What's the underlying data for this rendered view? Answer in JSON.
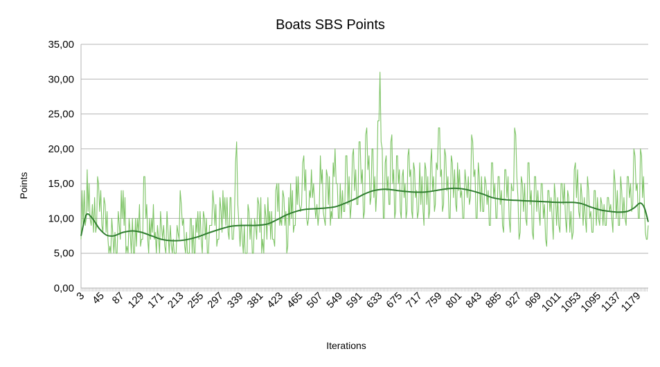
{
  "chart_data": {
    "type": "line",
    "title": "Boats SBS Points",
    "xlabel": "Iterations",
    "ylabel": "Points",
    "ylim": [
      0,
      35
    ],
    "y_ticks": [
      "0,00",
      "5,00",
      "10,00",
      "15,00",
      "20,00",
      "25,00",
      "30,00",
      "35,00"
    ],
    "x_ticks": [
      "3",
      "45",
      "87",
      "129",
      "171",
      "213",
      "255",
      "297",
      "339",
      "381",
      "423",
      "465",
      "507",
      "549",
      "591",
      "633",
      "675",
      "717",
      "759",
      "801",
      "843",
      "885",
      "927",
      "969",
      "1011",
      "1053",
      "1095",
      "1137",
      "1179"
    ],
    "x_range": [
      1,
      1200
    ],
    "grid": "horizontal",
    "legend": "none",
    "series": [
      {
        "kind": "raw",
        "color": "#7cc364",
        "anchors": [
          [
            1,
            7
          ],
          [
            3,
            14
          ],
          [
            10,
            9
          ],
          [
            14,
            17
          ],
          [
            20,
            10
          ],
          [
            25,
            12
          ],
          [
            32,
            8
          ],
          [
            38,
            15
          ],
          [
            45,
            9
          ],
          [
            52,
            12
          ],
          [
            58,
            7
          ],
          [
            62,
            6
          ],
          [
            68,
            8
          ],
          [
            75,
            5
          ],
          [
            82,
            9
          ],
          [
            90,
            14
          ],
          [
            98,
            6
          ],
          [
            105,
            8
          ],
          [
            112,
            5
          ],
          [
            120,
            10
          ],
          [
            129,
            7
          ],
          [
            136,
            16
          ],
          [
            142,
            7
          ],
          [
            150,
            10
          ],
          [
            158,
            8
          ],
          [
            165,
            7
          ],
          [
            171,
            9
          ],
          [
            178,
            6
          ],
          [
            185,
            8
          ],
          [
            192,
            6
          ],
          [
            200,
            5
          ],
          [
            206,
            8
          ],
          [
            213,
            12
          ],
          [
            220,
            6
          ],
          [
            228,
            5
          ],
          [
            234,
            10
          ],
          [
            240,
            5
          ],
          [
            248,
            11
          ],
          [
            255,
            7
          ],
          [
            262,
            10
          ],
          [
            268,
            5
          ],
          [
            275,
            9
          ],
          [
            282,
            12
          ],
          [
            290,
            7
          ],
          [
            297,
            11
          ],
          [
            305,
            13
          ],
          [
            312,
            8
          ],
          [
            318,
            13
          ],
          [
            323,
            7
          ],
          [
            330,
            21
          ],
          [
            335,
            9
          ],
          [
            342,
            7
          ],
          [
            350,
            5
          ],
          [
            356,
            11
          ],
          [
            363,
            5
          ],
          [
            370,
            9
          ],
          [
            377,
            12
          ],
          [
            385,
            7
          ],
          [
            392,
            10
          ],
          [
            400,
            11
          ],
          [
            408,
            7
          ],
          [
            415,
            15
          ],
          [
            423,
            10
          ],
          [
            430,
            13
          ],
          [
            436,
            5
          ],
          [
            444,
            15
          ],
          [
            452,
            9
          ],
          [
            460,
            16
          ],
          [
            465,
            11
          ],
          [
            472,
            19
          ],
          [
            480,
            9
          ],
          [
            488,
            17
          ],
          [
            495,
            12
          ],
          [
            502,
            9
          ],
          [
            507,
            19
          ],
          [
            515,
            10
          ],
          [
            522,
            16
          ],
          [
            530,
            11
          ],
          [
            538,
            20
          ],
          [
            545,
            10
          ],
          [
            549,
            15
          ],
          [
            556,
            11
          ],
          [
            563,
            19
          ],
          [
            570,
            10
          ],
          [
            577,
            20
          ],
          [
            584,
            12
          ],
          [
            591,
            21
          ],
          [
            598,
            10
          ],
          [
            605,
            23
          ],
          [
            612,
            12
          ],
          [
            618,
            20
          ],
          [
            624,
            11
          ],
          [
            633,
            31
          ],
          [
            640,
            10
          ],
          [
            646,
            19
          ],
          [
            652,
            12
          ],
          [
            658,
            22
          ],
          [
            664,
            10
          ],
          [
            670,
            19
          ],
          [
            676,
            11
          ],
          [
            682,
            17
          ],
          [
            688,
            10
          ],
          [
            694,
            20
          ],
          [
            700,
            11
          ],
          [
            706,
            17
          ],
          [
            712,
            10
          ],
          [
            717,
            18
          ],
          [
            724,
            11
          ],
          [
            730,
            17
          ],
          [
            736,
            10
          ],
          [
            742,
            20
          ],
          [
            748,
            11
          ],
          [
            752,
            18
          ],
          [
            759,
            23
          ],
          [
            765,
            11
          ],
          [
            772,
            19
          ],
          [
            779,
            10
          ],
          [
            786,
            18
          ],
          [
            793,
            12
          ],
          [
            801,
            17
          ],
          [
            808,
            10
          ],
          [
            815,
            15
          ],
          [
            822,
            12
          ],
          [
            829,
            21
          ],
          [
            836,
            10
          ],
          [
            843,
            16
          ],
          [
            850,
            11
          ],
          [
            857,
            15
          ],
          [
            864,
            9
          ],
          [
            871,
            18
          ],
          [
            878,
            10
          ],
          [
            885,
            16
          ],
          [
            892,
            9
          ],
          [
            899,
            17
          ],
          [
            906,
            10
          ],
          [
            913,
            14
          ],
          [
            920,
            22
          ],
          [
            927,
            7
          ],
          [
            934,
            15
          ],
          [
            941,
            10
          ],
          [
            948,
            18
          ],
          [
            955,
            8
          ],
          [
            962,
            16
          ],
          [
            969,
            11
          ],
          [
            976,
            15
          ],
          [
            983,
            7
          ],
          [
            990,
            14
          ],
          [
            997,
            10
          ],
          [
            1004,
            13
          ],
          [
            1011,
            9
          ],
          [
            1018,
            15
          ],
          [
            1025,
            10
          ],
          [
            1032,
            13
          ],
          [
            1039,
            7
          ],
          [
            1046,
            18
          ],
          [
            1053,
            11
          ],
          [
            1060,
            13
          ],
          [
            1067,
            10
          ],
          [
            1074,
            14
          ],
          [
            1081,
            8
          ],
          [
            1088,
            14
          ],
          [
            1095,
            10
          ],
          [
            1102,
            12
          ],
          [
            1109,
            9
          ],
          [
            1116,
            13
          ],
          [
            1123,
            10
          ],
          [
            1130,
            15
          ],
          [
            1137,
            9
          ],
          [
            1144,
            14
          ],
          [
            1151,
            10
          ],
          [
            1158,
            16
          ],
          [
            1165,
            11
          ],
          [
            1172,
            19
          ],
          [
            1179,
            10
          ],
          [
            1186,
            19
          ],
          [
            1192,
            12
          ],
          [
            1196,
            7
          ],
          [
            1200,
            9
          ]
        ]
      },
      {
        "kind": "trend",
        "color": "#2e7d2e",
        "points": [
          [
            1,
            7.5
          ],
          [
            12,
            10.5
          ],
          [
            25,
            10
          ],
          [
            40,
            8.5
          ],
          [
            55,
            7.6
          ],
          [
            70,
            7.5
          ],
          [
            90,
            8
          ],
          [
            110,
            8.2
          ],
          [
            129,
            8
          ],
          [
            150,
            7.5
          ],
          [
            171,
            7
          ],
          [
            195,
            6.8
          ],
          [
            220,
            6.9
          ],
          [
            245,
            7.3
          ],
          [
            270,
            7.9
          ],
          [
            297,
            8.5
          ],
          [
            320,
            8.9
          ],
          [
            345,
            9
          ],
          [
            370,
            9
          ],
          [
            395,
            9.2
          ],
          [
            415,
            9.8
          ],
          [
            435,
            10.5
          ],
          [
            455,
            11
          ],
          [
            475,
            11.3
          ],
          [
            500,
            11.4
          ],
          [
            520,
            11.5
          ],
          [
            540,
            11.7
          ],
          [
            560,
            12.2
          ],
          [
            580,
            12.8
          ],
          [
            600,
            13.5
          ],
          [
            620,
            14
          ],
          [
            645,
            14.2
          ],
          [
            670,
            14
          ],
          [
            700,
            13.8
          ],
          [
            730,
            13.8
          ],
          [
            759,
            14.1
          ],
          [
            780,
            14.3
          ],
          [
            801,
            14.3
          ],
          [
            825,
            14
          ],
          [
            850,
            13.5
          ],
          [
            870,
            13
          ],
          [
            895,
            12.7
          ],
          [
            920,
            12.6
          ],
          [
            950,
            12.5
          ],
          [
            980,
            12.4
          ],
          [
            1011,
            12.3
          ],
          [
            1040,
            12.3
          ],
          [
            1060,
            12.1
          ],
          [
            1080,
            11.6
          ],
          [
            1100,
            11.2
          ],
          [
            1120,
            11
          ],
          [
            1137,
            10.9
          ],
          [
            1155,
            11
          ],
          [
            1170,
            11.5
          ],
          [
            1183,
            12.2
          ],
          [
            1192,
            11.5
          ],
          [
            1200,
            9.5
          ]
        ]
      }
    ]
  }
}
